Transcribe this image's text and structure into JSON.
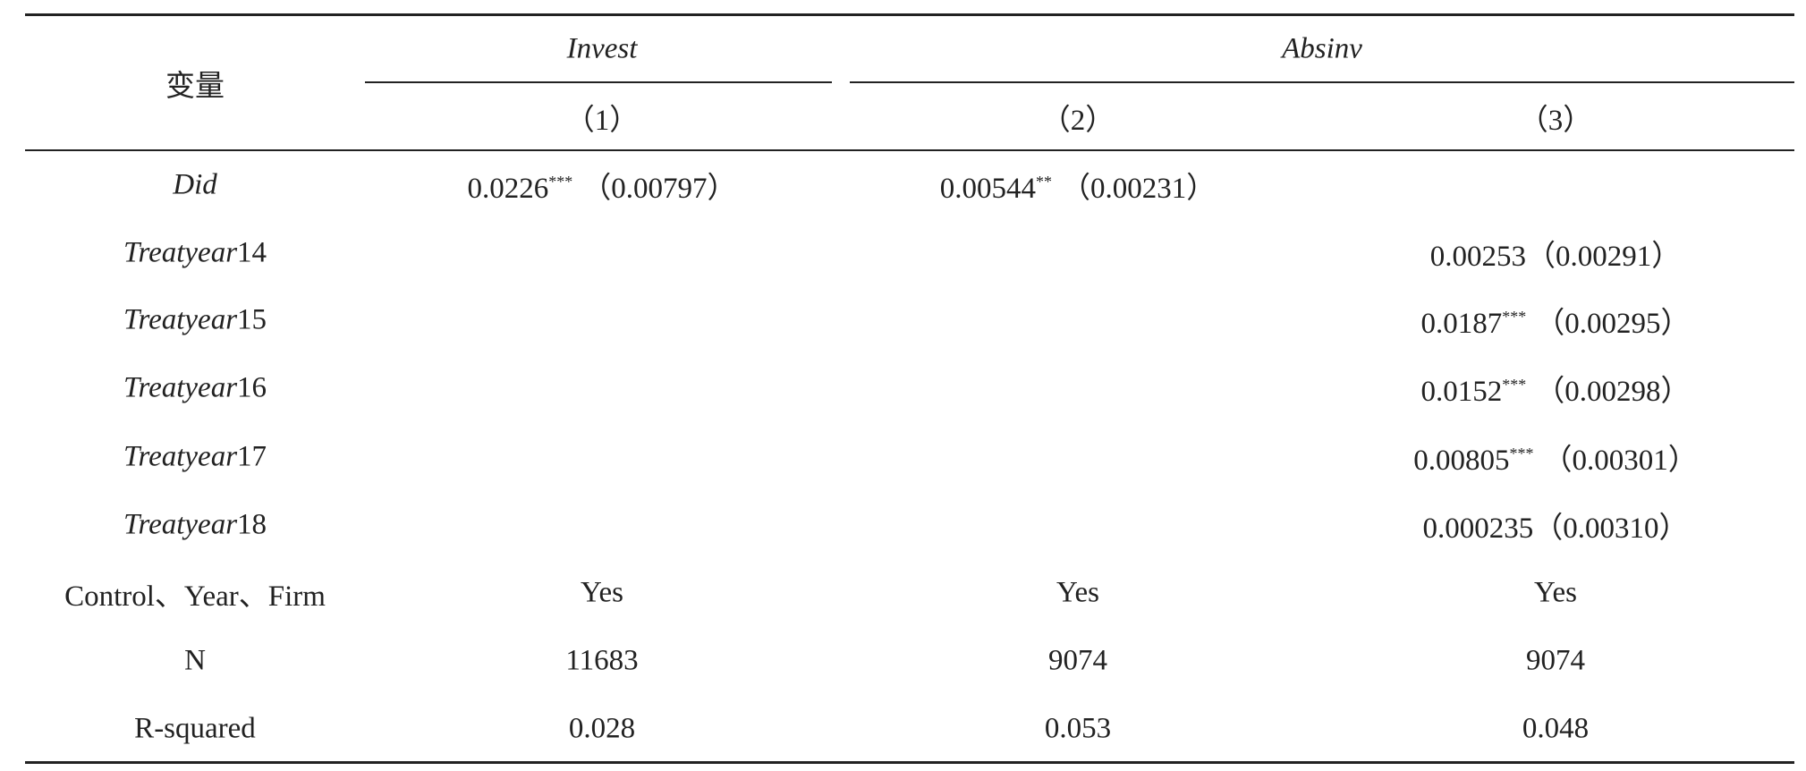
{
  "header": {
    "corner": "变量",
    "groups": [
      "Invest",
      "Absinv"
    ],
    "columns": [
      "（1）",
      "（2）",
      "（3）"
    ]
  },
  "rows": [
    {
      "label_italic": "Did",
      "cells": [
        {
          "coef": "0.0226",
          "stars": "***",
          "se": "（0.00797）"
        },
        {
          "coef": "0.00544",
          "stars": "**",
          "se": "（0.00231）"
        },
        null
      ]
    },
    {
      "label_italic": "Treatyear",
      "label_suffix": "14",
      "cells": [
        null,
        null,
        {
          "coef": "0.00253",
          "se": "（0.00291）"
        }
      ]
    },
    {
      "label_italic": "Treatyear",
      "label_suffix": "15",
      "cells": [
        null,
        null,
        {
          "coef": "0.0187",
          "stars": "***",
          "se": "（0.00295）"
        }
      ]
    },
    {
      "label_italic": "Treatyear",
      "label_suffix": "16",
      "cells": [
        null,
        null,
        {
          "coef": "0.0152",
          "stars": "***",
          "se": "（0.00298）"
        }
      ]
    },
    {
      "label_italic": "Treatyear",
      "label_suffix": "17",
      "cells": [
        null,
        null,
        {
          "coef": "0.00805",
          "stars": "***",
          "se": "（0.00301）"
        }
      ]
    },
    {
      "label_italic": "Treatyear",
      "label_suffix": "18",
      "cells": [
        null,
        null,
        {
          "coef": "0.000235",
          "se": "（0.00310）"
        }
      ]
    },
    {
      "label": "Control、Year、Firm",
      "cells": [
        "Yes",
        "Yes",
        "Yes"
      ]
    },
    {
      "label": "N",
      "cells": [
        "11683",
        "9074",
        "9074"
      ]
    },
    {
      "label": "R-squared",
      "cells": [
        "0.028",
        "0.053",
        "0.048"
      ]
    }
  ]
}
